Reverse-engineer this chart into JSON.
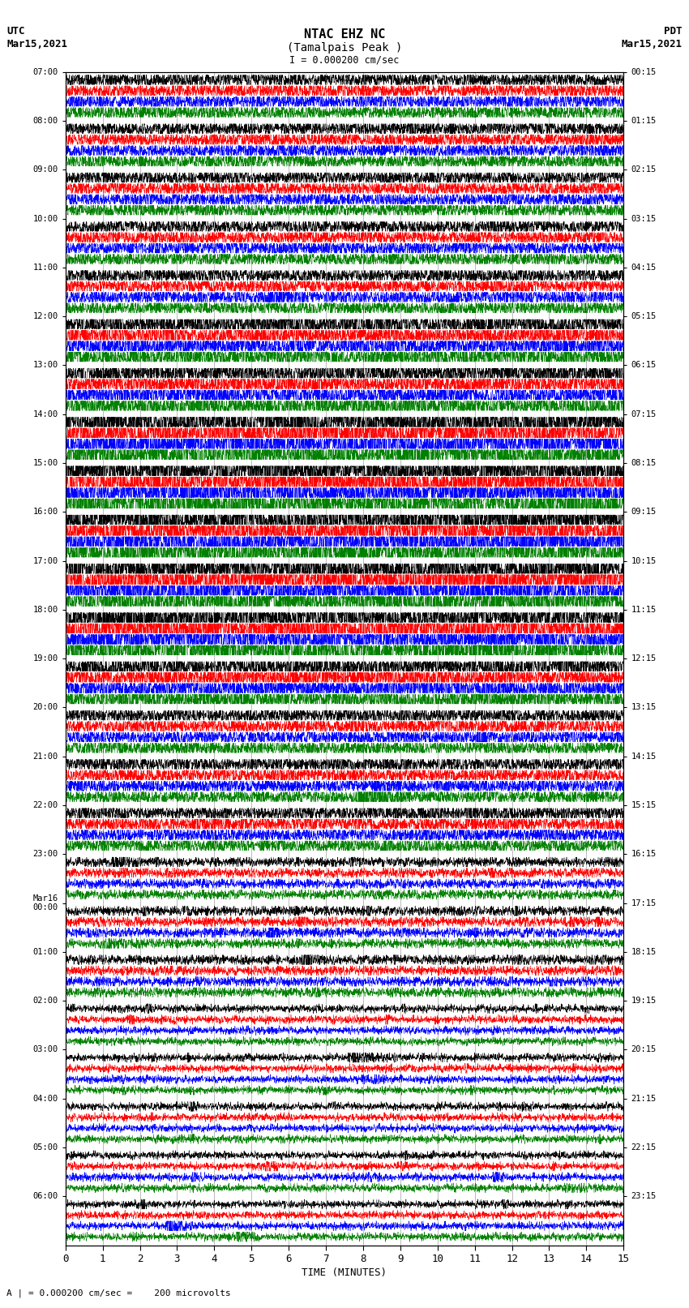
{
  "title_line1": "NTAC EHZ NC",
  "title_line2": "(Tamalpais Peak )",
  "scale_label": "I = 0.000200 cm/sec",
  "footer_label": "A | = 0.000200 cm/sec =    200 microvolts",
  "xlabel": "TIME (MINUTES)",
  "left_times": [
    "07:00",
    "08:00",
    "09:00",
    "10:00",
    "11:00",
    "12:00",
    "13:00",
    "14:00",
    "15:00",
    "16:00",
    "17:00",
    "18:00",
    "19:00",
    "20:00",
    "21:00",
    "22:00",
    "23:00",
    "Mar16\n00:00",
    "01:00",
    "02:00",
    "03:00",
    "04:00",
    "05:00",
    "06:00"
  ],
  "right_times": [
    "00:15",
    "01:15",
    "02:15",
    "03:15",
    "04:15",
    "05:15",
    "06:15",
    "07:15",
    "08:15",
    "09:15",
    "10:15",
    "11:15",
    "12:15",
    "13:15",
    "14:15",
    "15:15",
    "16:15",
    "17:15",
    "18:15",
    "19:15",
    "20:15",
    "21:15",
    "22:15",
    "23:15"
  ],
  "n_rows": 24,
  "traces_per_row": 4,
  "trace_colors": [
    "black",
    "red",
    "blue",
    "green"
  ],
  "fig_width": 8.5,
  "fig_height": 16.13,
  "bg_color": "white",
  "trace_duration_min": 15,
  "noise_seed": 42,
  "grid_color": "#888888",
  "UTC_label": "UTC",
  "UTC_date": "Mar15,2021",
  "PDT_label": "PDT",
  "PDT_date": "Mar15,2021"
}
